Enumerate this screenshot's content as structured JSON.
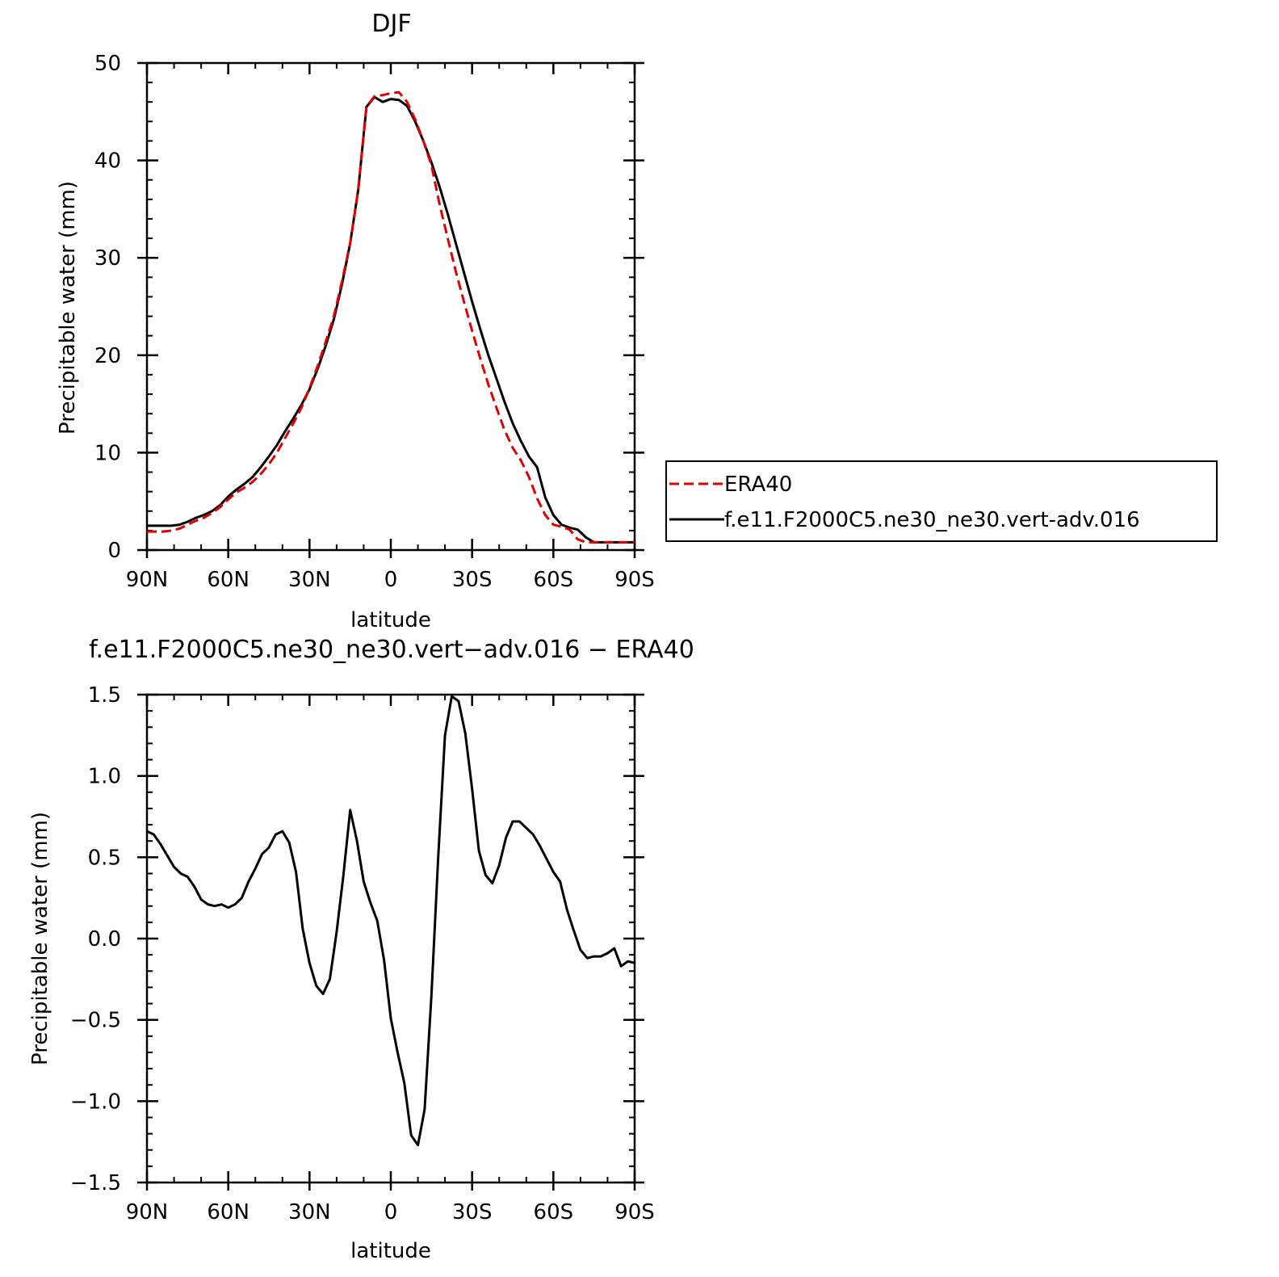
{
  "chart_data": [
    {
      "type": "line",
      "title": "DJF",
      "xlabel": "latitude",
      "ylabel": "Precipitable water (mm)",
      "xlim": [
        90,
        -90
      ],
      "ylim": [
        0,
        50
      ],
      "x_ticks": [
        90,
        60,
        30,
        0,
        -30,
        -60,
        -90
      ],
      "x_tick_labels": [
        "90N",
        "60N",
        "30N",
        "0",
        "30S",
        "60S",
        "90S"
      ],
      "y_ticks": [
        0,
        10,
        20,
        30,
        40,
        50
      ],
      "y_tick_labels": [
        "0",
        "10",
        "20",
        "30",
        "40",
        "50"
      ],
      "grid": false,
      "legend_position": "right",
      "series": [
        {
          "name": "ERA40",
          "color": "#e00000",
          "dash": "dashed",
          "x": [
            90,
            87,
            84,
            81,
            78,
            75,
            72,
            69,
            66,
            63,
            60,
            57,
            54,
            51,
            48,
            45,
            42,
            39,
            36,
            33,
            30,
            27,
            24,
            21,
            18,
            15,
            12,
            9,
            6,
            3,
            0,
            -3,
            -6,
            -9,
            -12,
            -15,
            -18,
            -21,
            -24,
            -27,
            -30,
            -33,
            -36,
            -39,
            -42,
            -45,
            -48,
            -51,
            -54,
            -57,
            -60,
            -63,
            -66,
            -69,
            -72,
            -75,
            -78,
            -81,
            -84,
            -87,
            -90
          ],
          "y": [
            1.9,
            1.9,
            1.9,
            2.0,
            2.2,
            2.6,
            3.0,
            3.3,
            3.8,
            4.4,
            5.2,
            5.9,
            6.4,
            7.0,
            7.8,
            8.8,
            10.0,
            11.5,
            13.0,
            14.6,
            16.6,
            18.9,
            21.4,
            24.0,
            27.6,
            31.5,
            37.0,
            45.5,
            46.6,
            46.7,
            46.9,
            47.0,
            46.0,
            44.2,
            42.0,
            39.5,
            35.5,
            32.0,
            28.6,
            25.5,
            22.5,
            19.7,
            17.0,
            14.6,
            12.3,
            10.5,
            9.2,
            7.5,
            5.3,
            3.6,
            2.6,
            2.4,
            2.1,
            1.1,
            0.8,
            0.8,
            0.8,
            0.8,
            0.8,
            0.8,
            0.8
          ]
        },
        {
          "name": "f.e11.F2000C5.ne30_ne30.vert-adv.016",
          "color": "#000000",
          "dash": "solid",
          "x": [
            90,
            87,
            84,
            81,
            78,
            75,
            72,
            69,
            66,
            63,
            60,
            57,
            54,
            51,
            48,
            45,
            42,
            39,
            36,
            33,
            30,
            27,
            24,
            21,
            18,
            15,
            12,
            9,
            6,
            3,
            0,
            -3,
            -6,
            -9,
            -12,
            -15,
            -18,
            -21,
            -24,
            -27,
            -30,
            -33,
            -36,
            -39,
            -42,
            -45,
            -48,
            -51,
            -54,
            -57,
            -60,
            -63,
            -66,
            -69,
            -72,
            -75,
            -78,
            -81,
            -84,
            -87,
            -90
          ],
          "y": [
            2.5,
            2.5,
            2.5,
            2.5,
            2.6,
            2.9,
            3.3,
            3.6,
            4.0,
            4.6,
            5.5,
            6.2,
            6.8,
            7.5,
            8.5,
            9.6,
            10.8,
            12.2,
            13.5,
            14.9,
            16.5,
            18.6,
            21.0,
            23.7,
            27.3,
            31.5,
            37.0,
            45.5,
            46.5,
            46.0,
            46.3,
            46.2,
            45.6,
            44.0,
            42.0,
            39.8,
            37.3,
            34.5,
            31.5,
            28.5,
            25.5,
            22.7,
            20.0,
            17.6,
            15.2,
            13.0,
            11.2,
            9.6,
            8.5,
            5.4,
            3.6,
            2.6,
            2.3,
            2.1,
            1.3,
            0.8,
            0.8,
            0.8,
            0.8,
            0.8,
            0.8
          ]
        }
      ]
    },
    {
      "type": "line",
      "title": "f.e11.F2000C5.ne30_ne30.vert−adv.016 − ERA40",
      "xlabel": "latitude",
      "ylabel": "Precipitable water (mm)",
      "xlim": [
        90,
        -90
      ],
      "ylim": [
        -1.5,
        1.5
      ],
      "x_ticks": [
        90,
        60,
        30,
        0,
        -30,
        -60,
        -90
      ],
      "x_tick_labels": [
        "90N",
        "60N",
        "30N",
        "0",
        "30S",
        "60S",
        "90S"
      ],
      "y_ticks": [
        1.5,
        1.0,
        0.5,
        0.0,
        -0.5,
        -1.0,
        -1.5
      ],
      "y_tick_labels": [
        "1.5",
        "1.0",
        "0.5",
        "0.0",
        "−0.5",
        "−1.0",
        "−1.5"
      ],
      "grid": false,
      "series": [
        {
          "color": "#000000",
          "dash": "solid",
          "x": [
            90,
            87.5,
            85,
            82.5,
            80,
            77.5,
            75,
            72.5,
            70,
            67.5,
            65,
            62.5,
            60,
            57.5,
            55,
            52.5,
            50,
            47.5,
            45,
            42.5,
            40,
            37.5,
            35,
            32.5,
            30,
            27.5,
            25,
            22.5,
            20,
            17.5,
            15,
            12.5,
            10,
            7.5,
            5,
            2.5,
            0,
            -2.5,
            -5,
            -7.5,
            -10,
            -12.5,
            -15,
            -17.5,
            -20,
            -22.5,
            -25,
            -27.5,
            -30,
            -32.5,
            -35,
            -37.5,
            -40,
            -42.5,
            -45,
            -47.5,
            -50,
            -52.5,
            -55,
            -57.5,
            -60,
            -62.5,
            -65,
            -67.5,
            -70,
            -72.5,
            -75,
            -77.5,
            -80,
            -82.5,
            -85,
            -87.5,
            -90
          ],
          "y": [
            0.66,
            0.64,
            0.58,
            0.51,
            0.44,
            0.4,
            0.38,
            0.32,
            0.24,
            0.21,
            0.2,
            0.21,
            0.19,
            0.21,
            0.25,
            0.35,
            0.43,
            0.52,
            0.56,
            0.64,
            0.66,
            0.59,
            0.41,
            0.06,
            -0.15,
            -0.29,
            -0.34,
            -0.25,
            0.04,
            0.39,
            0.79,
            0.6,
            0.35,
            0.22,
            0.11,
            -0.13,
            -0.49,
            -0.7,
            -0.89,
            -1.21,
            -1.27,
            -1.05,
            -0.35,
            0.5,
            1.25,
            1.49,
            1.46,
            1.26,
            0.92,
            0.54,
            0.39,
            0.34,
            0.45,
            0.62,
            0.72,
            0.72,
            0.68,
            0.64,
            0.57,
            0.49,
            0.41,
            0.35,
            0.18,
            0.05,
            -0.07,
            -0.12,
            -0.11,
            -0.11,
            -0.09,
            -0.06,
            -0.17,
            -0.14,
            -0.15
          ]
        }
      ]
    }
  ]
}
